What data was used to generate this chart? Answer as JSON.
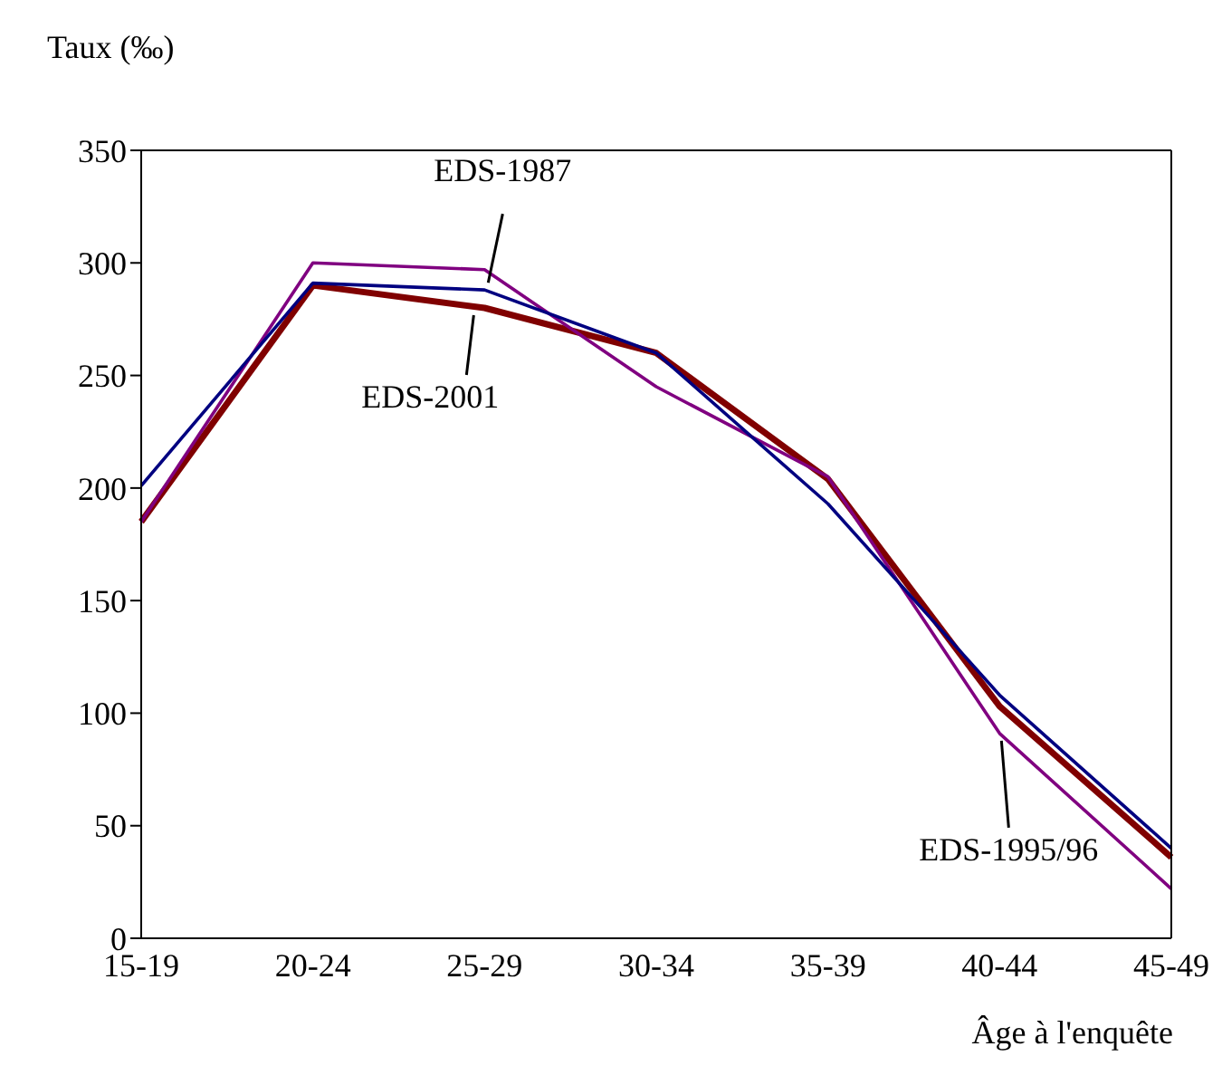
{
  "chart_data": {
    "type": "line",
    "xlabel": "Âge à l'enquête",
    "ylabel": "Taux (‰)",
    "categories": [
      "15-19",
      "20-24",
      "25-29",
      "30-34",
      "35-39",
      "40-44",
      "45-49"
    ],
    "series": [
      {
        "name": "EDS-1987",
        "color": "#000080",
        "values": [
          201,
          291,
          288,
          260,
          193,
          108,
          40
        ]
      },
      {
        "name": "EDS-1995/96",
        "color": "#800080",
        "values": [
          185,
          300,
          297,
          245,
          205,
          91,
          22
        ]
      },
      {
        "name": "EDS-2001",
        "color": "#800000",
        "values": [
          185,
          290,
          280,
          260,
          204,
          103,
          36
        ]
      }
    ],
    "ylim": [
      0,
      350
    ],
    "yticks": [
      0,
      50,
      100,
      150,
      200,
      250,
      300,
      350
    ],
    "grid": false,
    "legend": false,
    "marker": "none",
    "line_style": "solid"
  }
}
